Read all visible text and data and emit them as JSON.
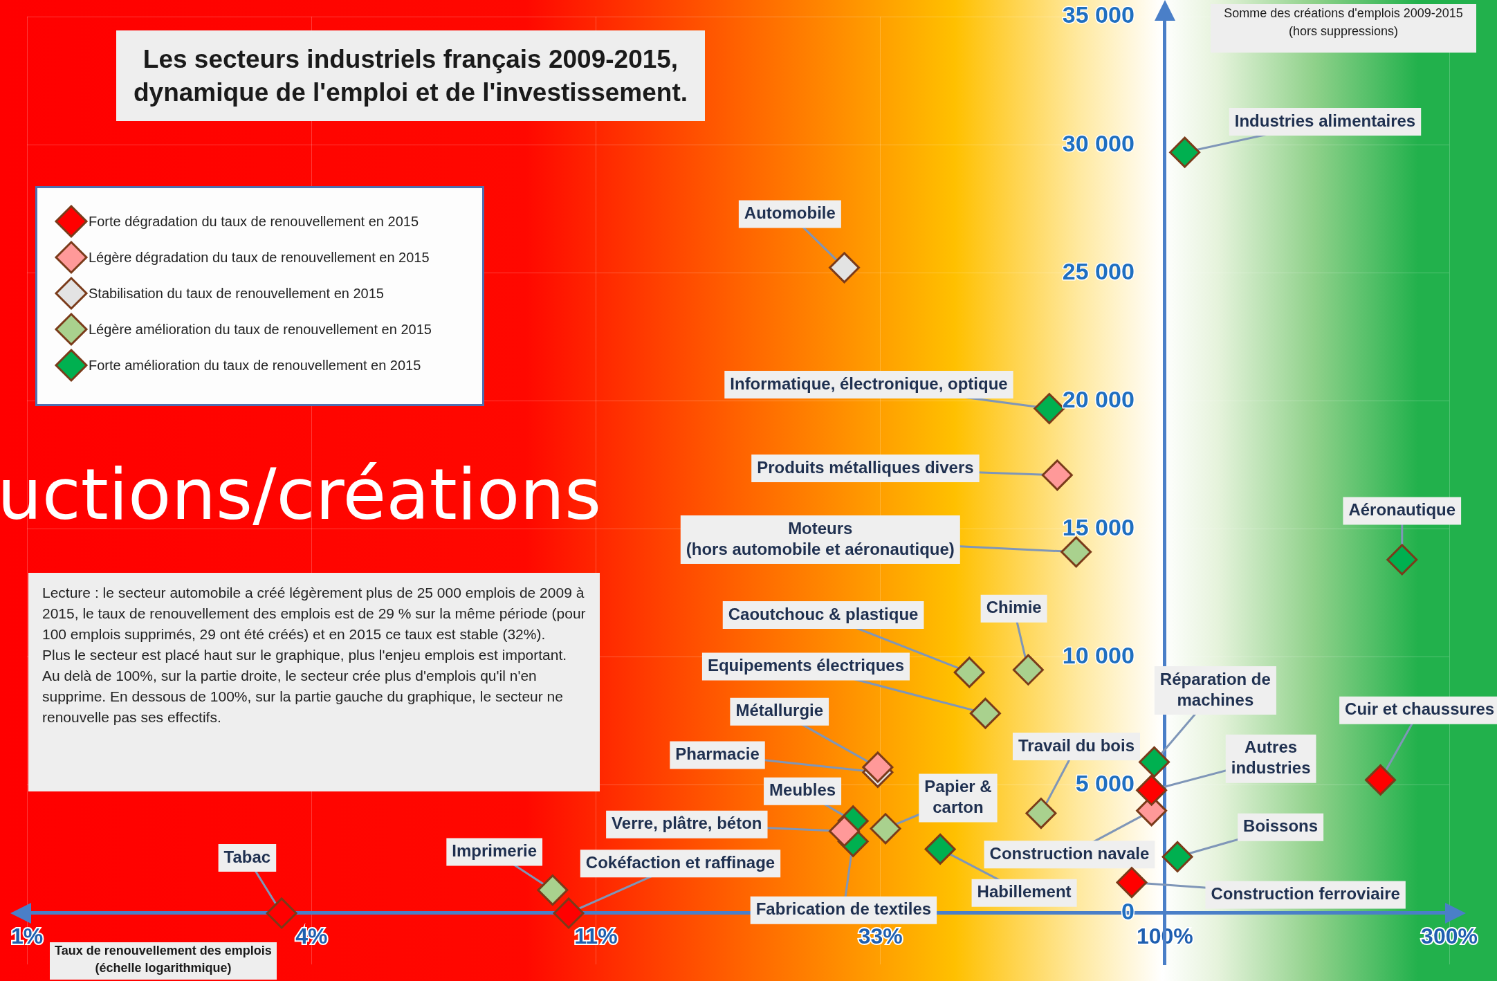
{
  "chart_data": {
    "type": "scatter",
    "title": "Les secteurs industriels français 2009-2015,\ndynamique de l'emploi et de l'investissement.",
    "xlabel": "Taux de renouvellement des emplois\n(échelle logarithmique)",
    "ylabel": "Somme des créations d'emplois 2009-2015\n(hors suppressions)",
    "log": "x",
    "grid": true,
    "legend": "top left",
    "marker": "diamond",
    "xlim": [
      1.2346,
      300
    ],
    "xticks": [
      {
        "value": 1.2346,
        "label": "1%"
      },
      {
        "value": 3.7037,
        "label": "4%"
      },
      {
        "value": 11.111,
        "label": "11%"
      },
      {
        "value": 33.333,
        "label": "33%"
      },
      {
        "value": 100,
        "label": "100%"
      },
      {
        "value": 300,
        "label": "300%"
      }
    ],
    "ylim": [
      -2000,
      35000
    ],
    "yticks": [
      {
        "value": 0,
        "label": "0"
      },
      {
        "value": 5000,
        "label": "5 000"
      },
      {
        "value": 10000,
        "label": "10 000"
      },
      {
        "value": 15000,
        "label": "15 000"
      },
      {
        "value": 20000,
        "label": "20 000"
      },
      {
        "value": 25000,
        "label": "25 000"
      },
      {
        "value": 30000,
        "label": "30 000"
      },
      {
        "value": 35000,
        "label": "35 000"
      }
    ],
    "series": [
      {
        "name": "Forte dégradation du taux de renouvellement en 2015",
        "color": "#ff0000",
        "x": [
          3.3,
          10,
          95,
          88,
          230
        ],
        "values": [
          0,
          0,
          4800,
          1200,
          5200
        ]
      },
      {
        "name": "Légère dégradation du taux de renouvellement en 2015",
        "color": "#ff9999",
        "x": [
          66,
          33,
          29,
          95
        ],
        "values": [
          17100,
          5700,
          3200,
          4000
        ]
      },
      {
        "name": "Stabilisation du taux de renouvellement en 2015",
        "color": "#e3e3e3",
        "x": [
          29,
          33
        ],
        "values": [
          25200,
          5500
        ]
      },
      {
        "name": "Légère amélioration du taux de renouvellement en 2015",
        "color": "#a9d18e",
        "x": [
          9.4,
          71,
          47,
          59,
          50,
          34,
          62
        ],
        "values": [
          900,
          14100,
          9400,
          9500,
          7800,
          3300,
          3900
        ]
      },
      {
        "name": "Forte amélioration du taux de renouvellement en 2015",
        "color": "#00b050",
        "x": [
          108,
          64,
          30,
          30,
          42,
          96,
          105,
          250
        ],
        "values": [
          29700,
          19700,
          3600,
          2800,
          2500,
          5900,
          2200,
          13800
        ]
      }
    ],
    "annotations": [
      {
        "text": "Tabac",
        "x": 3.3,
        "y": 0
      },
      {
        "text": "Imprimerie",
        "x": 9.4,
        "y": 900
      },
      {
        "text": "Cokéfaction et raffinage",
        "x": 10,
        "y": 0
      },
      {
        "text": "Automobile",
        "x": 29,
        "y": 25200
      },
      {
        "text": "Informatique, électronique, optique",
        "x": 64,
        "y": 19700
      },
      {
        "text": "Produits métalliques divers",
        "x": 66,
        "y": 17100
      },
      {
        "text": "Moteurs\n(hors automobile et aéronautique)",
        "x": 71,
        "y": 14100
      },
      {
        "text": "Caoutchouc & plastique",
        "x": 47,
        "y": 9400
      },
      {
        "text": "Chimie",
        "x": 59,
        "y": 9500
      },
      {
        "text": "Equipements électriques",
        "x": 50,
        "y": 7800
      },
      {
        "text": "Métallurgie",
        "x": 33,
        "y": 5700
      },
      {
        "text": "Pharmacie",
        "x": 33,
        "y": 5500
      },
      {
        "text": "Meubles",
        "x": 30,
        "y": 3600
      },
      {
        "text": "Verre, plâtre, béton",
        "x": 29,
        "y": 3200
      },
      {
        "text": "Fabrication de textiles",
        "x": 30,
        "y": 2800
      },
      {
        "text": "Papier &\ncarton",
        "x": 34,
        "y": 3300
      },
      {
        "text": "Habillement",
        "x": 42,
        "y": 2500
      },
      {
        "text": "Travail du bois",
        "x": 62,
        "y": 3900
      },
      {
        "text": "Réparation de\nmachines",
        "x": 96,
        "y": 5900
      },
      {
        "text": "Autres\nindustries",
        "x": 95,
        "y": 4800
      },
      {
        "text": "Construction navale",
        "x": 95,
        "y": 4000
      },
      {
        "text": "Boissons",
        "x": 105,
        "y": 2200
      },
      {
        "text": "Construction ferroviaire",
        "x": 88,
        "y": 1200
      },
      {
        "text": "Industries alimentaires",
        "x": 108,
        "y": 29700
      },
      {
        "text": "Aéronautique",
        "x": 250,
        "y": 13800
      },
      {
        "text": "Cuir et chaussures",
        "x": 230,
        "y": 5200
      },
      "Lecture : le secteur automobile a créé légèrement plus de 25 000 emplois de 2009 à 2015, le taux de renouvellement des emplois est de 29 % sur la même période (pour 100 emplois supprimés, 29 ont été créés) et en 2015 ce taux est stable (32%).\nPlus le secteur est placé haut sur le graphique, plus l'enjeu emplois est important. Au delà de 100%, sur la partie droite, le secteur crée plus d'emplois qu'il n'en supprime. En dessous de 100%, sur la partie gauche du graphique, le secteur ne renouvelle pas ses effectifs.",
      "uctions/créations"
    ]
  }
}
